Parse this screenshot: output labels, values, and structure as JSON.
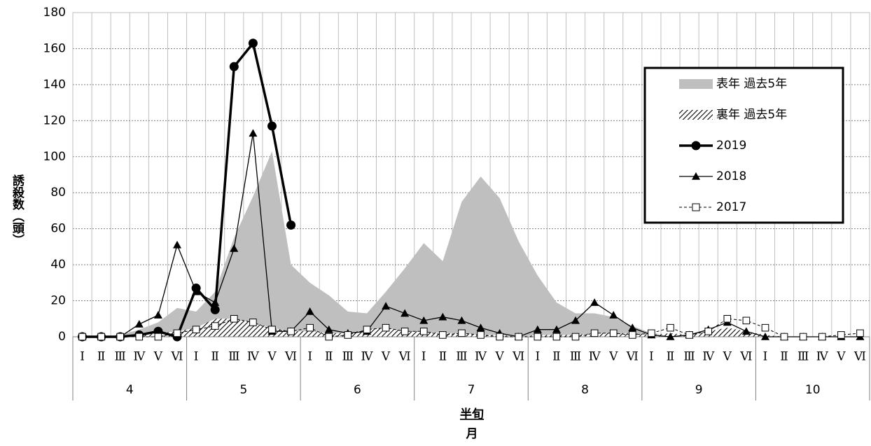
{
  "chart_data": {
    "type": "line",
    "y_label": "誘殺数（頭）",
    "x_label": "半旬",
    "x_group_label": "月",
    "categories": [
      "Ⅰ",
      "Ⅱ",
      "Ⅲ",
      "Ⅳ",
      "Ⅴ",
      "Ⅵ",
      "Ⅰ",
      "Ⅱ",
      "Ⅲ",
      "Ⅳ",
      "Ⅴ",
      "Ⅵ",
      "Ⅰ",
      "Ⅱ",
      "Ⅲ",
      "Ⅳ",
      "Ⅴ",
      "Ⅵ",
      "Ⅰ",
      "Ⅱ",
      "Ⅲ",
      "Ⅳ",
      "Ⅴ",
      "Ⅵ",
      "Ⅰ",
      "Ⅱ",
      "Ⅲ",
      "Ⅳ",
      "Ⅴ",
      "Ⅵ",
      "Ⅰ",
      "Ⅱ",
      "Ⅲ",
      "Ⅳ",
      "Ⅴ",
      "Ⅵ",
      "Ⅰ",
      "Ⅱ",
      "Ⅲ",
      "Ⅳ",
      "Ⅴ",
      "Ⅵ"
    ],
    "groups": [
      "4",
      "5",
      "6",
      "7",
      "8",
      "9",
      "10"
    ],
    "ylim": [
      0,
      180
    ],
    "yticks": [
      0,
      20,
      40,
      60,
      80,
      100,
      120,
      140,
      160,
      180
    ],
    "grid": true,
    "legend": "upper right",
    "series": [
      {
        "name": "表年 過去5年",
        "kind": "area",
        "color": "#bfbfbf",
        "values": [
          0,
          0,
          1,
          4,
          8,
          16,
          14,
          25,
          55,
          78,
          103,
          40,
          30,
          23,
          14,
          13,
          25,
          38,
          52,
          42,
          75,
          89,
          77,
          53,
          34,
          19,
          13,
          13,
          11,
          6,
          2,
          1,
          1,
          2,
          5,
          3,
          1,
          0,
          0,
          0,
          0,
          0
        ]
      },
      {
        "name": "裏年 過去5年",
        "kind": "hatch",
        "color": "#000000",
        "values": [
          0,
          0,
          0,
          1,
          2,
          3,
          5,
          10,
          10,
          8,
          5,
          3,
          3,
          2,
          2,
          4,
          5,
          3,
          3,
          2,
          2,
          1,
          1,
          0,
          1,
          1,
          1,
          2,
          2,
          2,
          1,
          2,
          1,
          3,
          5,
          3,
          1,
          0,
          0,
          0,
          0,
          0
        ]
      },
      {
        "name": "2019",
        "kind": "line",
        "marker": "circle",
        "width": 3.5,
        "color": "#000000",
        "values": [
          0,
          0,
          0,
          1,
          3,
          0,
          27,
          15,
          150,
          163,
          117,
          62,
          null,
          null,
          null,
          null,
          null,
          null,
          null,
          null,
          null,
          null,
          null,
          null,
          null,
          null,
          null,
          null,
          null,
          null,
          null,
          null,
          null,
          null,
          null,
          null,
          null,
          null,
          null,
          null,
          null,
          null
        ]
      },
      {
        "name": "2018",
        "kind": "line",
        "marker": "triangle",
        "width": 1.3,
        "color": "#000000",
        "values": [
          0,
          0,
          0,
          7,
          12,
          51,
          25,
          19,
          49,
          113,
          3,
          3,
          14,
          4,
          2,
          3,
          17,
          13,
          9,
          11,
          9,
          5,
          2,
          0,
          4,
          4,
          9,
          19,
          12,
          5,
          1,
          0,
          1,
          4,
          8,
          3,
          0,
          0,
          0,
          0,
          0,
          0
        ]
      },
      {
        "name": "2017",
        "kind": "line",
        "marker": "square",
        "width": 1,
        "dash": true,
        "color": "#000000",
        "values": [
          0,
          0,
          0,
          0,
          0,
          2,
          4,
          6,
          10,
          8,
          4,
          3,
          5,
          0,
          1,
          4,
          5,
          3,
          3,
          1,
          2,
          1,
          0,
          0,
          0,
          0,
          0,
          2,
          2,
          1,
          2,
          5,
          1,
          3,
          10,
          9,
          5,
          0,
          0,
          0,
          1,
          2
        ]
      }
    ]
  }
}
